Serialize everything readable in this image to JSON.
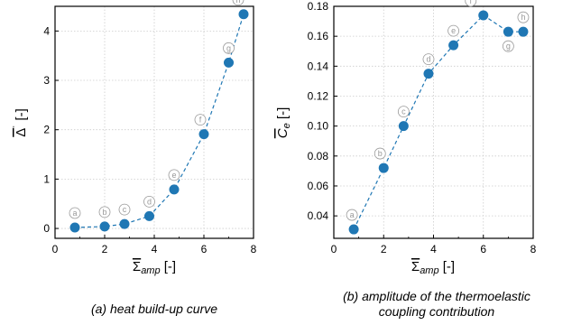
{
  "chart_data": [
    {
      "type": "line",
      "title": "",
      "caption": "(a) heat build-up curve",
      "xlabel": "Σ̄amp [-]",
      "ylabel": "Δ̄˙ [-]",
      "xlim": [
        0,
        8
      ],
      "ylim": [
        -0.2,
        4.5
      ],
      "xticks": [
        "0",
        "2",
        "4",
        "6",
        "8"
      ],
      "yticks": [
        "0",
        "1",
        "2",
        "3",
        "4"
      ],
      "grid": true,
      "marker_color": "#1f77b4",
      "line_style": "dashed",
      "series": [
        {
          "labels": [
            "a",
            "b",
            "c",
            "d",
            "e",
            "f",
            "g",
            "h"
          ],
          "x": [
            0.8,
            2.0,
            2.8,
            3.8,
            4.8,
            6.0,
            7.0,
            7.6
          ],
          "y": [
            0.02,
            0.04,
            0.09,
            0.25,
            0.79,
            1.91,
            3.36,
            4.34
          ]
        }
      ]
    },
    {
      "type": "line",
      "title": "",
      "caption_line1": "(b) amplitude of the thermoelastic",
      "caption_line2": "coupling contribution",
      "xlabel": "Σ̄amp [-]",
      "ylabel": "C̄e [-]",
      "xlim": [
        0,
        8
      ],
      "ylim": [
        0.025,
        0.18
      ],
      "xticks": [
        "0",
        "2",
        "4",
        "6",
        "8"
      ],
      "yticks": [
        "0.04",
        "0.06",
        "0.08",
        "0.10",
        "0.12",
        "0.14",
        "0.16",
        "0.18"
      ],
      "grid": true,
      "marker_color": "#1f77b4",
      "line_style": "dashed",
      "series": [
        {
          "labels": [
            "a",
            "b",
            "c",
            "d",
            "e",
            "f",
            "g",
            "h"
          ],
          "x": [
            0.8,
            2.0,
            2.8,
            3.8,
            4.8,
            6.0,
            7.0,
            7.6
          ],
          "y": [
            0.031,
            0.072,
            0.1,
            0.135,
            0.154,
            0.174,
            0.163,
            0.163
          ]
        }
      ]
    }
  ]
}
